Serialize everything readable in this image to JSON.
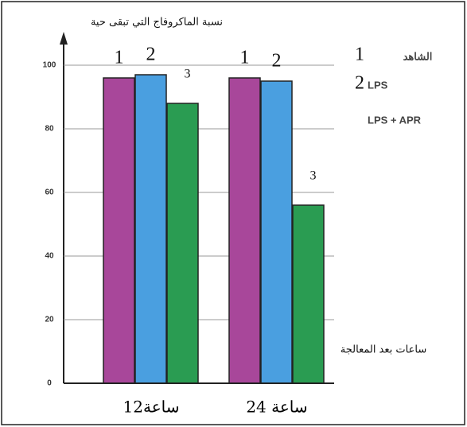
{
  "chart_data": {
    "type": "bar",
    "y_label": "نسبة الماكروفاج التي تبقى حية",
    "x_label": "ساعات بعد المعالجة",
    "categories": [
      "12ساعة",
      "24 ساعة"
    ],
    "series": [
      {
        "name": "الشاهد",
        "color": "#a8479a",
        "values": [
          96,
          96
        ]
      },
      {
        "name": "LPS",
        "color": "#4a9fe0",
        "values": [
          97,
          95
        ]
      },
      {
        "name": "LPS + APR",
        "color": "#2a9c52",
        "values": [
          88,
          56
        ]
      }
    ],
    "bar_labels": [
      "1",
      "2",
      "3"
    ],
    "legend_numbers": [
      "1",
      "2"
    ],
    "ylim": [
      0,
      110
    ],
    "yticks": [
      0,
      20,
      40,
      60,
      80,
      100
    ],
    "grid": true
  }
}
